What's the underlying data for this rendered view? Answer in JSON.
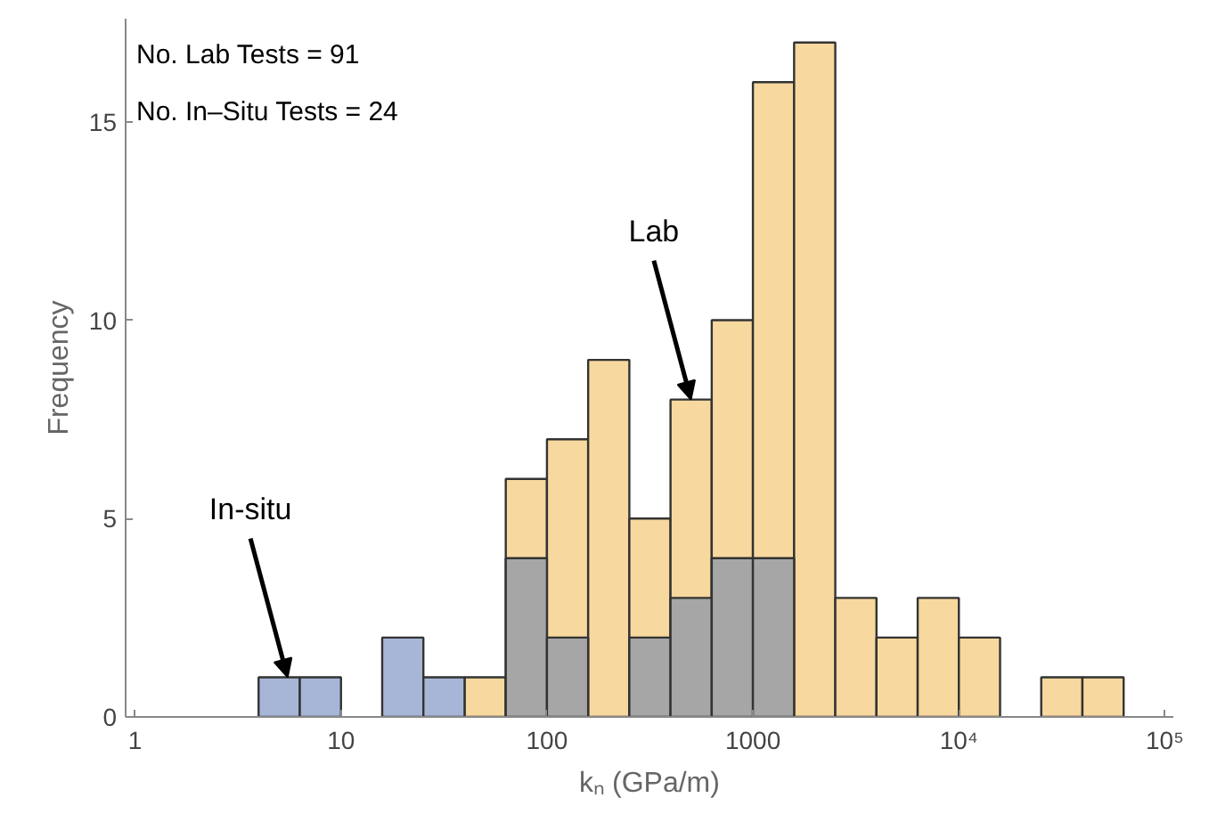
{
  "chart_data": {
    "type": "histogram",
    "xlabel": "kₙ (GPa/m)",
    "ylabel": "Frequency",
    "bins": [
      3.98,
      6.31,
      10,
      15.85,
      25.12,
      39.81,
      63.1,
      100,
      158.5,
      251.2,
      398.1,
      631,
      1000,
      1585,
      2512,
      3981,
      6310,
      10000,
      15850,
      25120,
      39810,
      63100
    ],
    "series": [
      {
        "color": "#f7d89e",
        "values": [
          0,
          0,
          0,
          0,
          0,
          1,
          6,
          7,
          9,
          5,
          8,
          10,
          16,
          17,
          3,
          2,
          3,
          2,
          0,
          1,
          1
        ]
      },
      {
        "colors": [
          "#a7b6d6",
          "#a7b6d6",
          "#a7b6d6",
          "#a7b6d6",
          "#a7b6d6",
          "#a7b6d6",
          "#a6a6a6",
          "#a6a6a6",
          "#a6a6a6",
          "#a6a6a6",
          "#a6a6a6",
          "#a6a6a6",
          "#a6a6a6",
          "#a6a6a6",
          "#a6a6a6",
          "#a6a6a6",
          "#a6a6a6",
          "#a6a6a6",
          "#a6a6a6",
          "#a6a6a6",
          "#a6a6a6"
        ],
        "values": [
          1,
          1,
          0,
          2,
          1,
          0,
          4,
          2,
          0,
          2,
          3,
          4,
          4,
          0,
          0,
          0,
          0,
          0,
          0,
          0,
          0
        ]
      }
    ],
    "log": "x",
    "xlim": [
      0.9,
      110000
    ],
    "xticks": [
      1,
      10,
      100,
      1000,
      {
        "value": 10000,
        "label": "10⁴"
      },
      {
        "value": 100000,
        "label": "10⁵"
      }
    ],
    "ylim": [
      0,
      17.6
    ],
    "yticks": [
      0,
      5,
      10,
      15
    ],
    "grid": false,
    "annotations": [
      "No. Lab Tests = 91",
      "No. In–Situ Tests = 24",
      {
        "text": "In-situ",
        "x": 5.5,
        "y": 1
      },
      {
        "text": "Lab",
        "x": 500,
        "y": 8
      }
    ]
  }
}
